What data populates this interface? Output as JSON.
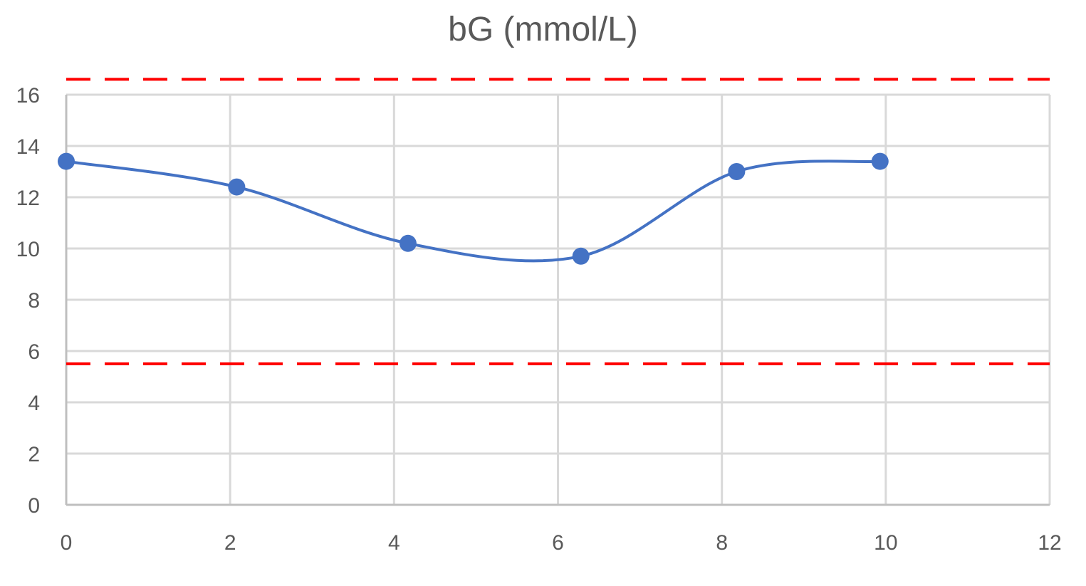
{
  "chart_data": {
    "type": "line",
    "title": "bG (mmol/L)",
    "xlabel": "",
    "ylabel": "",
    "xlim": [
      0,
      12
    ],
    "ylim": [
      0,
      16
    ],
    "x_ticks": [
      0,
      2,
      4,
      6,
      8,
      10,
      12
    ],
    "y_ticks": [
      0,
      2,
      4,
      6,
      8,
      10,
      12,
      14,
      16
    ],
    "grid": true,
    "smooth": true,
    "series": [
      {
        "color": "#4472C4",
        "marker": "circle",
        "x": [
          0,
          2.08,
          4.17,
          6.28,
          8.18,
          9.93
        ],
        "y": [
          13.4,
          12.4,
          10.2,
          9.7,
          13.0,
          13.4
        ]
      }
    ],
    "reference_lines": [
      {
        "y": 16.6,
        "color": "#FF0000",
        "style": "dashed"
      },
      {
        "y": 5.5,
        "color": "#FF0000",
        "style": "dashed"
      }
    ]
  }
}
